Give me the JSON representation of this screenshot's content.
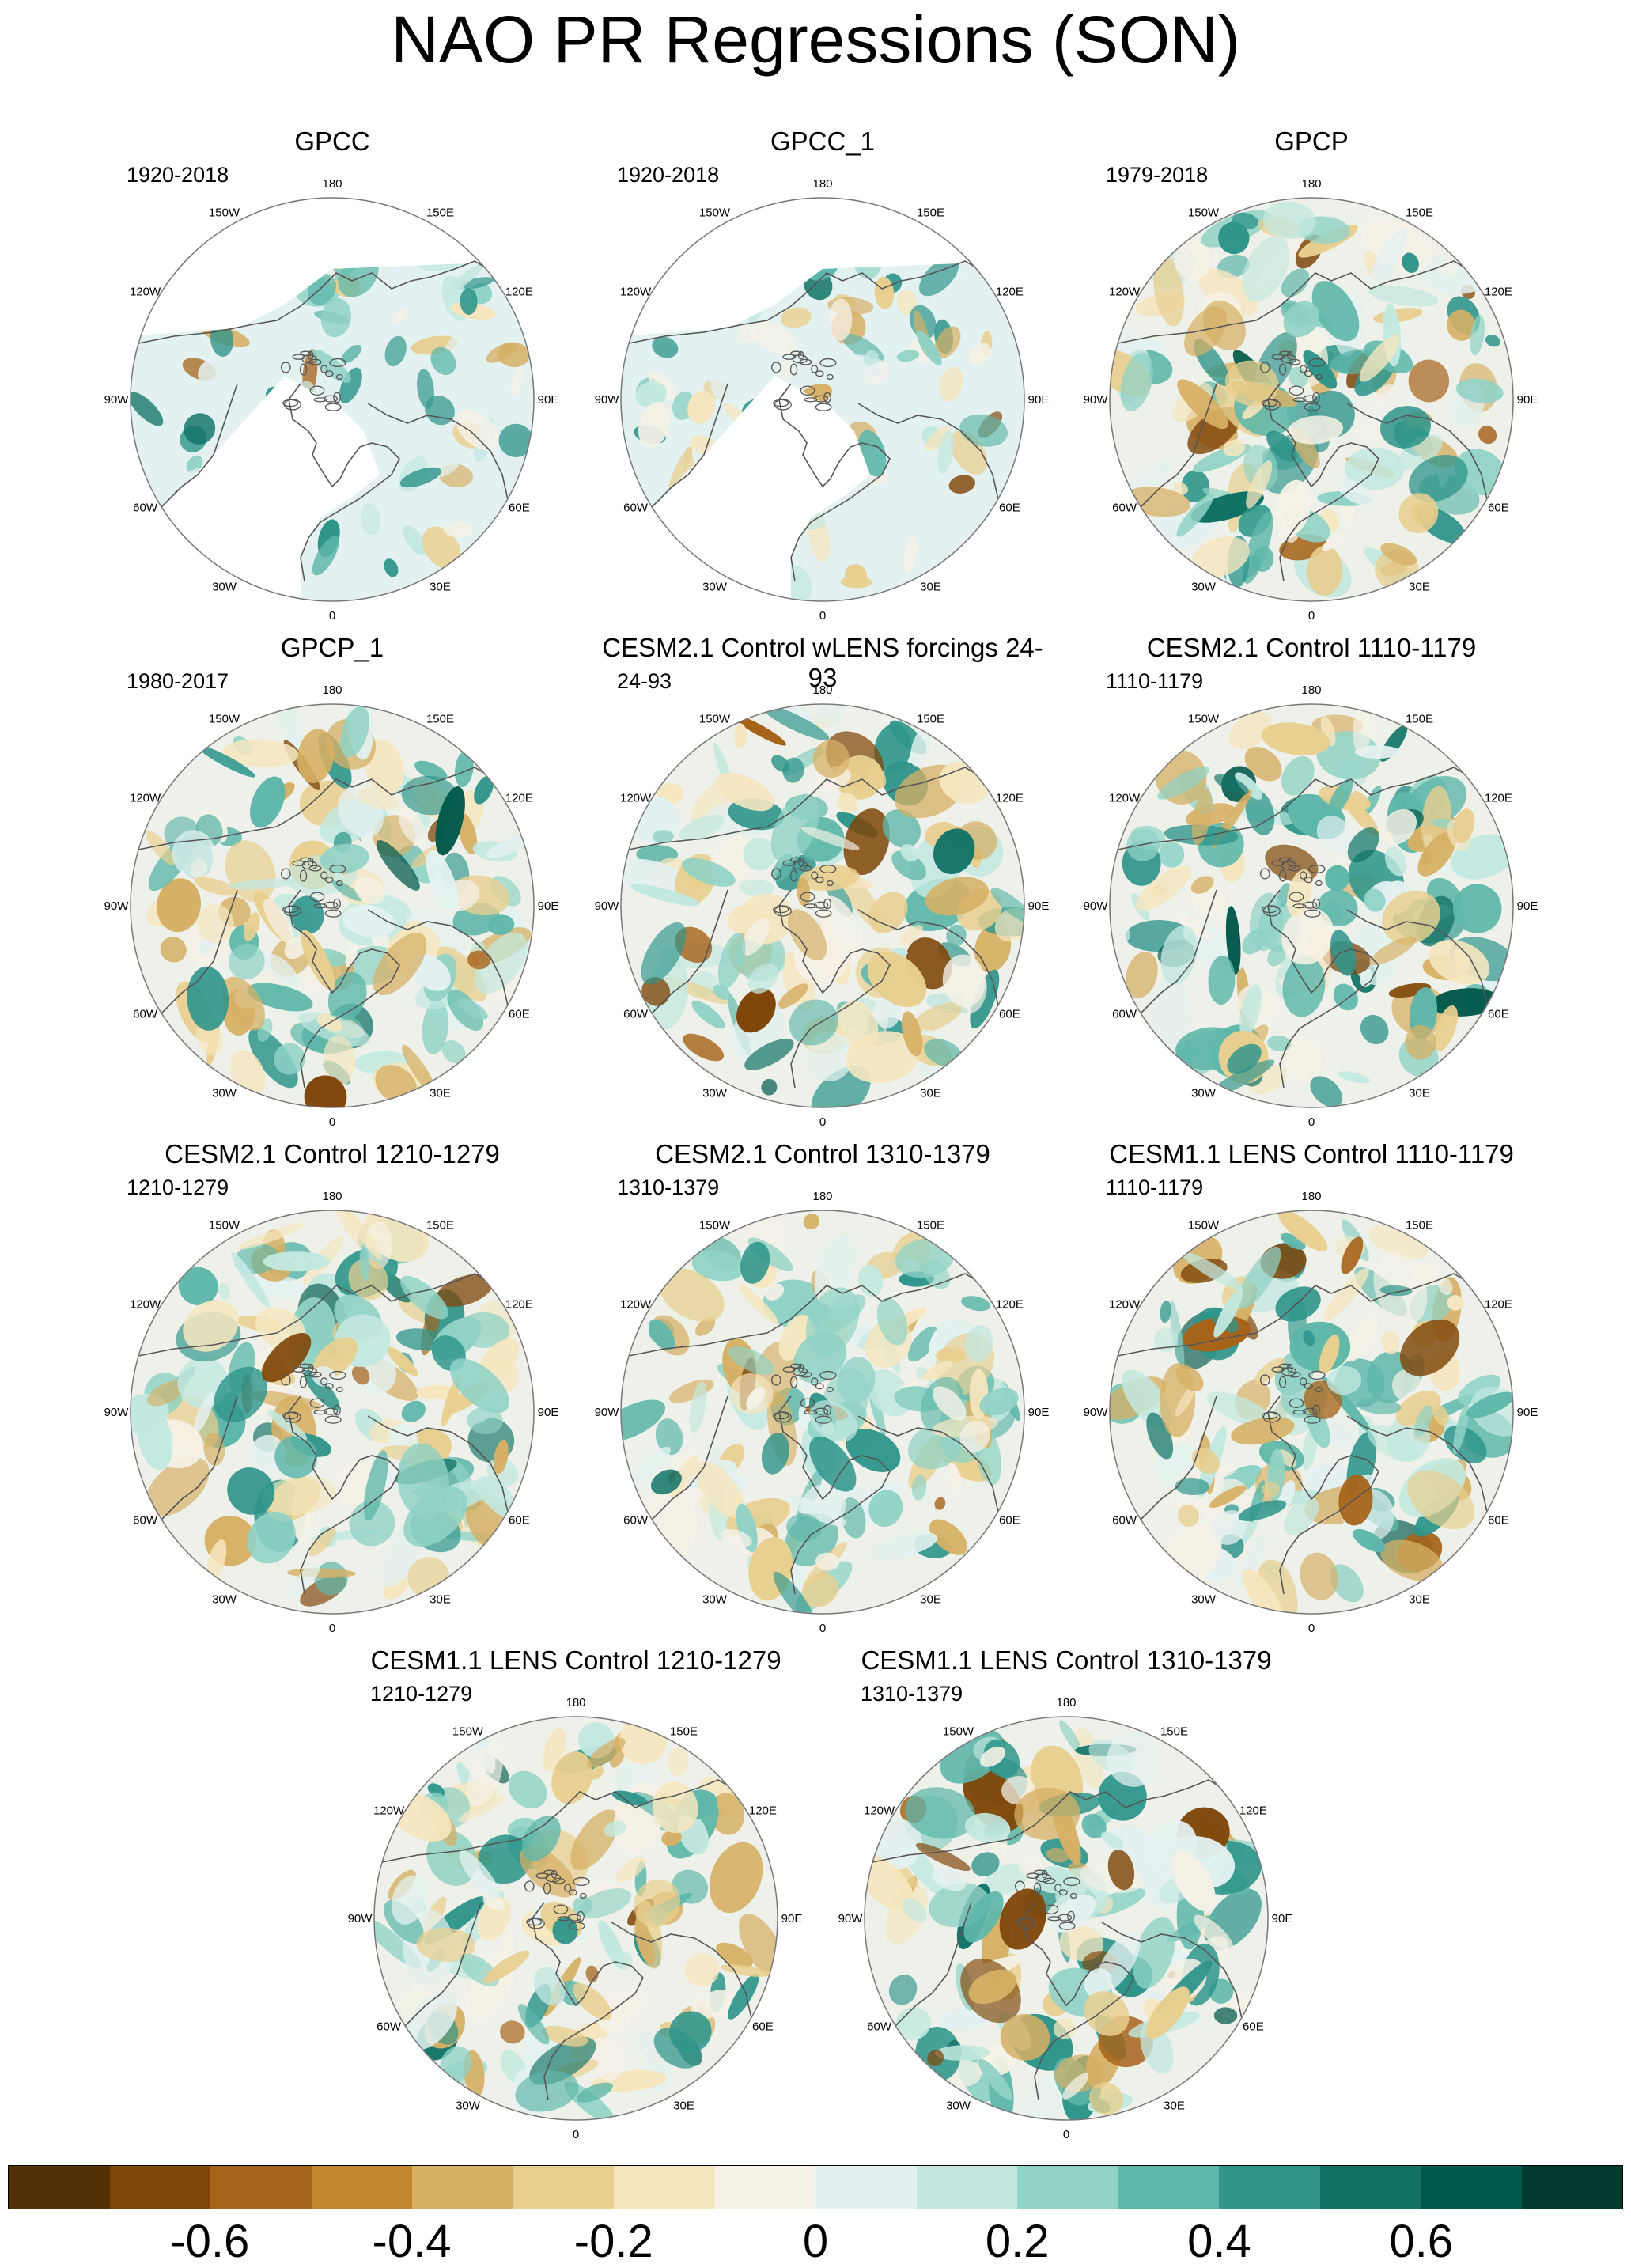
{
  "title": "NAO PR Regressions (SON)",
  "lon_labels": [
    "180",
    "150E",
    "120E",
    "90E",
    "60E",
    "30E",
    "0",
    "30W",
    "60W",
    "90W",
    "120W",
    "150W"
  ],
  "panels": [
    {
      "title": "GPCC",
      "period": "1920-2018",
      "ocean_masked": true
    },
    {
      "title": "GPCC_1",
      "period": "1920-2018",
      "ocean_masked": true
    },
    {
      "title": "GPCP",
      "period": "1979-2018",
      "ocean_masked": false
    },
    {
      "title": "GPCP_1",
      "period": "1980-2017",
      "ocean_masked": false
    },
    {
      "title": "CESM2.1 Control wLENS forcings 24-93",
      "period": "24-93",
      "ocean_masked": false
    },
    {
      "title": "CESM2.1 Control 1110-1179",
      "period": "1110-1179",
      "ocean_masked": false
    },
    {
      "title": "CESM2.1 Control 1210-1279",
      "period": "1210-1279",
      "ocean_masked": false
    },
    {
      "title": "CESM2.1 Control 1310-1379",
      "period": "1310-1379",
      "ocean_masked": false
    },
    {
      "title": "CESM1.1 LENS Control 1110-1179",
      "period": "1110-1179",
      "ocean_masked": false
    },
    {
      "title": "CESM1.1 LENS Control 1210-1279",
      "period": "1210-1279",
      "ocean_masked": false
    },
    {
      "title": "CESM1.1 LENS Control 1310-1379",
      "period": "1310-1379",
      "ocean_masked": false
    }
  ],
  "colorbar": {
    "colors": [
      "#543005",
      "#7f470a",
      "#a6631a",
      "#c28530",
      "#d6b065",
      "#e8cf90",
      "#f5e6bf",
      "#f5f1e6",
      "#e3f1f0",
      "#c2e8e0",
      "#90d2c5",
      "#5fb7aa",
      "#2f958b",
      "#117366",
      "#035a4c",
      "#013b30"
    ],
    "ticks": [
      {
        "label": "-0.6",
        "value": -0.6
      },
      {
        "label": "-0.4",
        "value": -0.4
      },
      {
        "label": "-0.2",
        "value": -0.2
      },
      {
        "label": "0",
        "value": 0
      },
      {
        "label": "0.2",
        "value": 0.2
      },
      {
        "label": "0.4",
        "value": 0.4
      },
      {
        "label": "0.6",
        "value": 0.6
      }
    ],
    "range": [
      -0.8,
      0.8
    ]
  }
}
